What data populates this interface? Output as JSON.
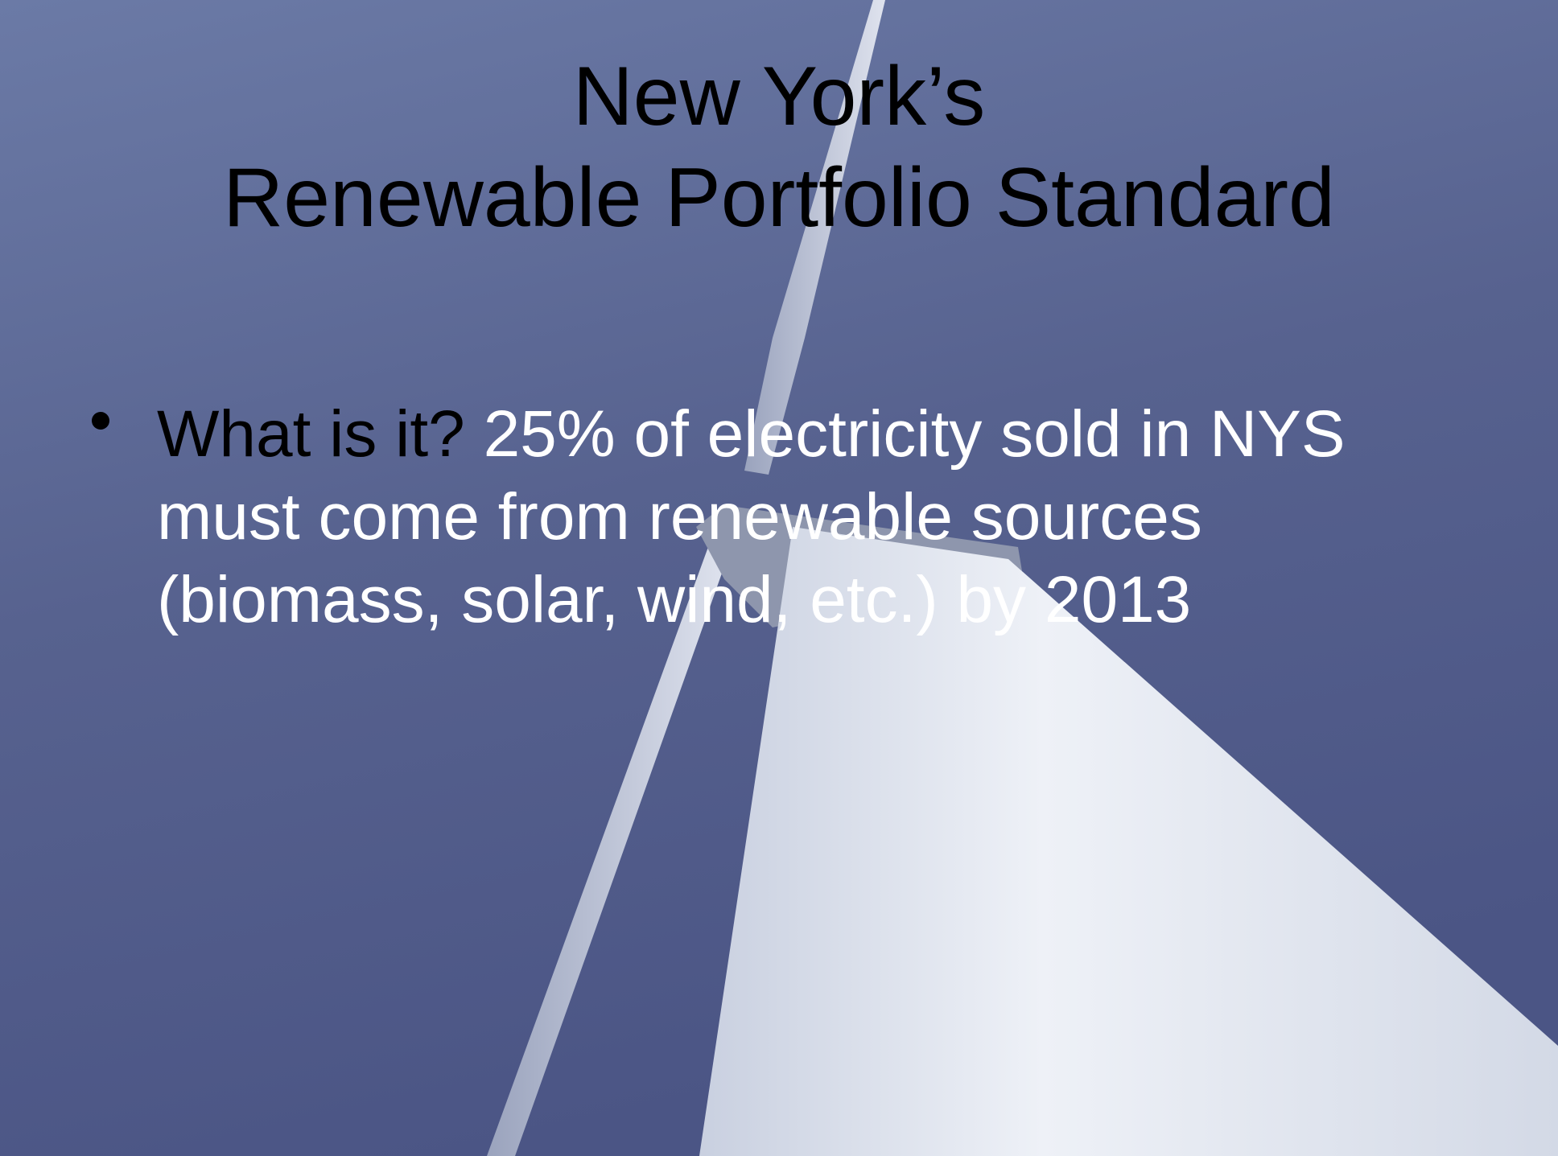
{
  "title": {
    "line1": "New York’s",
    "line2": "Renewable Portfolio Standard"
  },
  "bullets": [
    {
      "question": "What is it?",
      "answer": "25% of electricity sold in NYS must come from renewable sources (biomass, solar, wind, etc.) by 2013"
    }
  ]
}
